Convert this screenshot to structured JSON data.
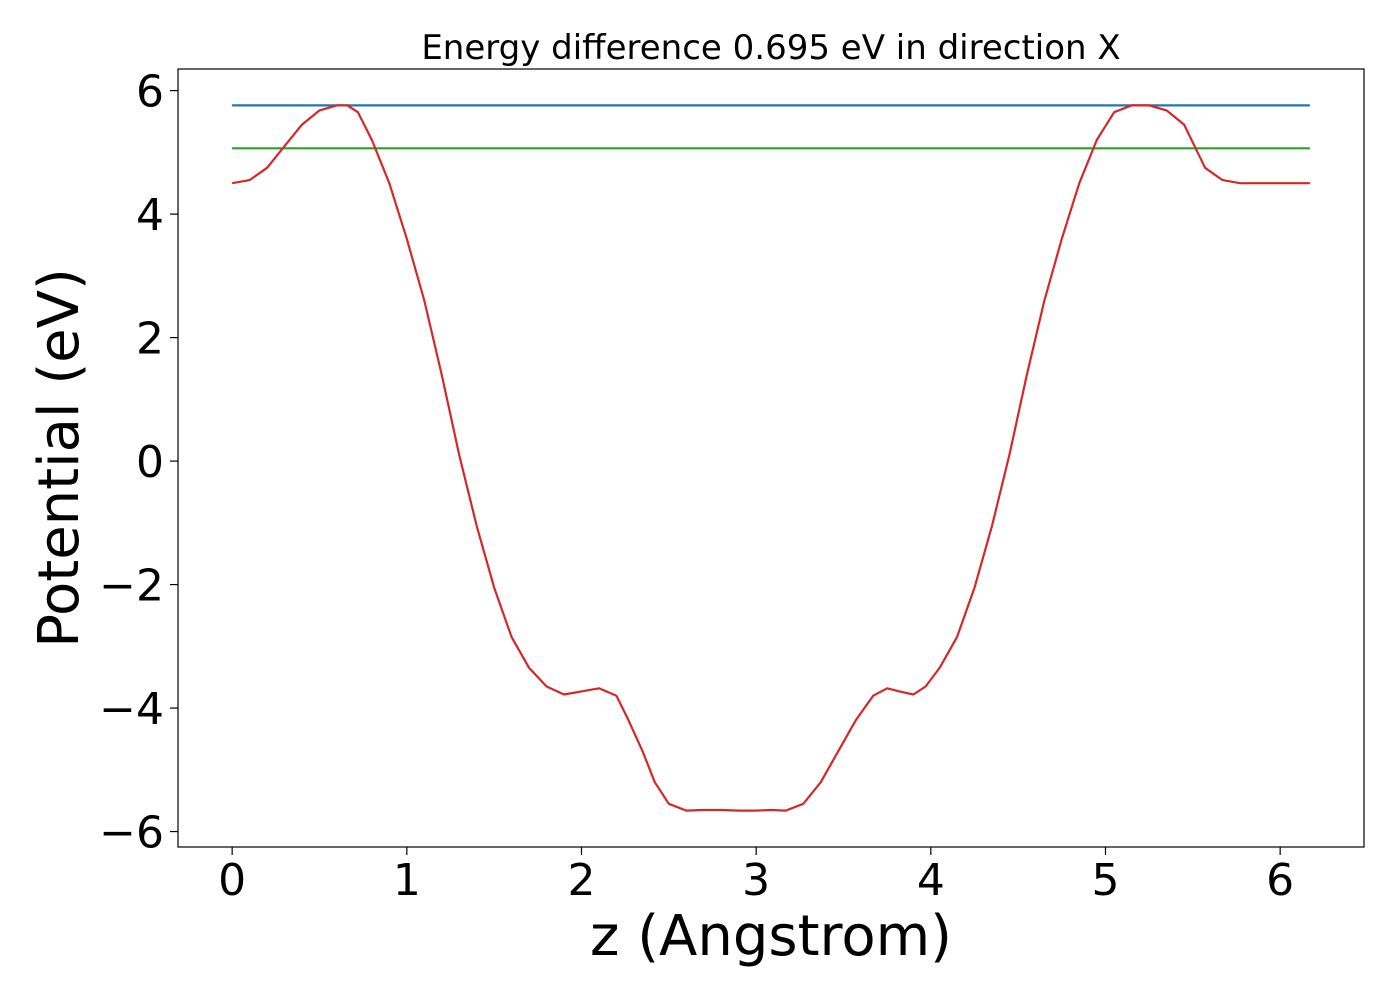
{
  "chart_data": {
    "type": "line",
    "title": "Energy difference 0.695 eV in direction X",
    "xlabel": "z (Angstrom)",
    "ylabel": "Potential (eV)",
    "xlim": [
      -0.31,
      6.48
    ],
    "ylim": [
      -6.25,
      6.35
    ],
    "xticks": [
      0,
      1,
      2,
      3,
      4,
      5,
      6
    ],
    "xtick_labels": [
      "0",
      "1",
      "2",
      "3",
      "4",
      "5",
      "6"
    ],
    "yticks": [
      6,
      4,
      2,
      0,
      -2,
      -4,
      -6
    ],
    "ytick_labels": [
      "6",
      "4",
      "2",
      "0",
      "−2",
      "−4",
      "−6"
    ],
    "grid": false,
    "series": [
      {
        "color": "#1f77b4",
        "x": [
          0,
          6.17
        ],
        "y": [
          5.76,
          5.76
        ]
      },
      {
        "color": "#2ca02c",
        "x": [
          0,
          6.17
        ],
        "y": [
          5.065,
          5.065
        ]
      },
      {
        "color": "#d62728",
        "x": [
          0,
          0.1,
          0.2,
          0.3,
          0.4,
          0.5,
          0.6,
          0.66,
          0.72,
          0.8,
          0.9,
          1.0,
          1.1,
          1.2,
          1.3,
          1.4,
          1.5,
          1.6,
          1.7,
          1.8,
          1.9,
          2.0,
          2.1,
          2.2,
          2.27,
          2.35,
          2.42,
          2.5,
          2.6,
          2.7,
          2.8,
          2.9,
          3.0,
          3.085,
          3.17,
          3.27,
          3.37,
          3.47,
          3.57,
          3.67,
          3.75,
          3.82,
          3.9,
          3.97,
          4.05,
          4.15,
          4.25,
          4.35,
          4.45,
          4.55,
          4.65,
          4.75,
          4.85,
          4.95,
          5.05,
          5.15,
          5.25,
          5.35,
          5.45,
          5.51,
          5.57,
          5.67,
          5.77,
          5.87,
          5.97,
          6.07,
          6.17
        ],
        "y": [
          4.5,
          4.55,
          4.75,
          5.1,
          5.45,
          5.68,
          5.76,
          5.76,
          5.65,
          5.2,
          4.5,
          3.6,
          2.6,
          1.4,
          0.1,
          -1.05,
          -2.05,
          -2.85,
          -3.35,
          -3.65,
          -3.78,
          -3.73,
          -3.68,
          -3.8,
          -4.2,
          -4.7,
          -5.2,
          -5.55,
          -5.66,
          -5.65,
          -5.65,
          -5.66,
          -5.66,
          -5.65,
          -5.66,
          -5.55,
          -5.2,
          -4.7,
          -4.2,
          -3.8,
          -3.68,
          -3.73,
          -3.78,
          -3.65,
          -3.35,
          -2.85,
          -2.05,
          -1.05,
          0.1,
          1.4,
          2.6,
          3.6,
          4.5,
          5.2,
          5.65,
          5.76,
          5.76,
          5.68,
          5.45,
          5.1,
          4.75,
          4.55,
          4.5,
          4.5,
          4.5,
          4.5,
          4.5
        ]
      }
    ]
  }
}
